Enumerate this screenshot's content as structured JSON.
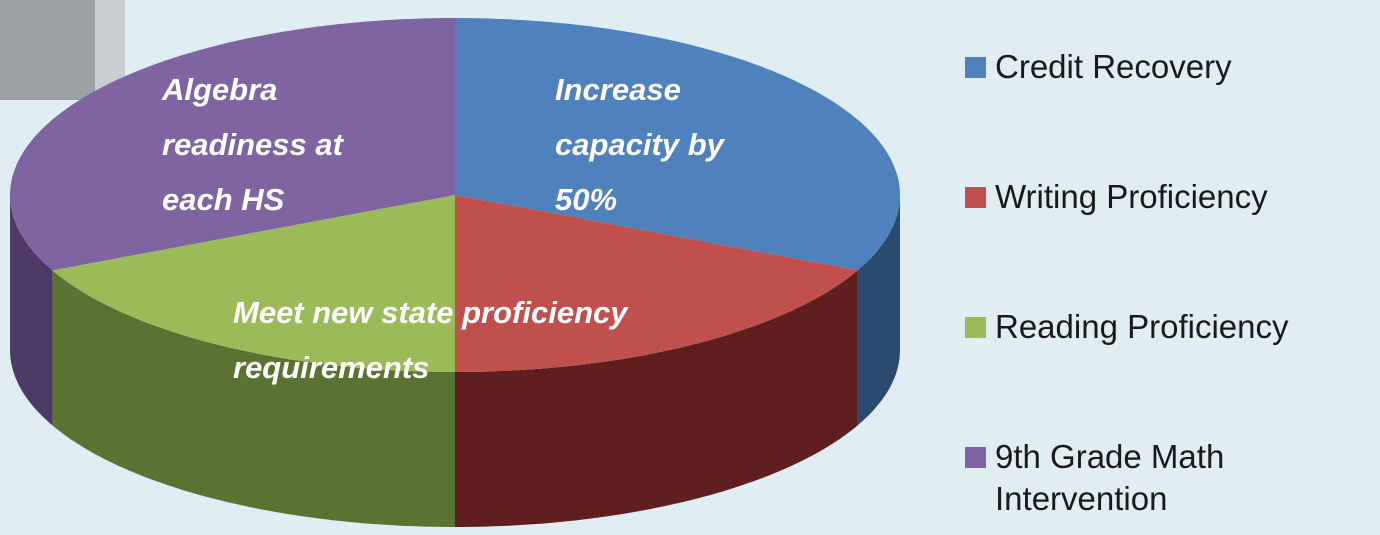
{
  "chart_data": {
    "type": "pie3d",
    "categories": [
      "Credit Recovery",
      "Writing Proficiency",
      "Reading Proficiency",
      "9th Grade Math Intervention"
    ],
    "values": [
      32,
      18,
      18,
      32
    ],
    "colors": [
      "#4f81bd",
      "#c0504d",
      "#9bbb59",
      "#8064a2"
    ],
    "side_colors": [
      "#2a4a70",
      "#5e1f1e",
      "#5a7332",
      "#4d3a66"
    ],
    "annotations": [
      "Increase capacity by 50%",
      "Algebra readiness at each HS",
      "Meet  new state proficiency requirements"
    ]
  }
}
